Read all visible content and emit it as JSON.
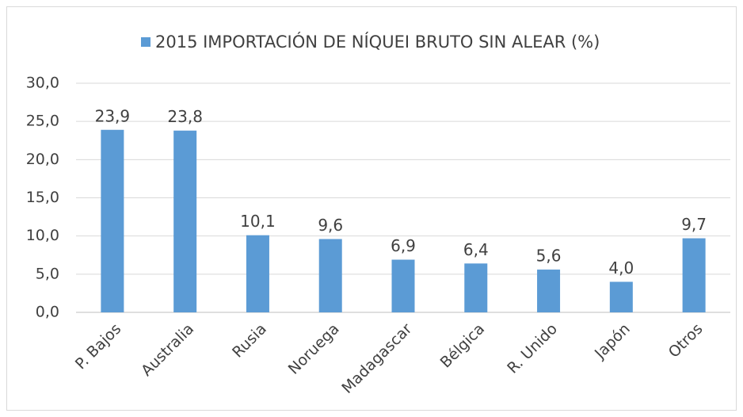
{
  "chart_data": {
    "type": "bar",
    "categories": [
      "P. Bajos",
      "Australia",
      "Rusia",
      "Noruega",
      "Madagascar",
      "Bélgica",
      "R. Unido",
      "Japón",
      "Otros"
    ],
    "series": [
      {
        "name": "2015 IMPORTACIÓN DE NÍQUEI BRUTO SIN ALEAR (%)",
        "color": "#5b9bd5",
        "values": [
          23.9,
          23.8,
          10.1,
          9.6,
          6.9,
          6.4,
          5.6,
          4.0,
          9.7
        ],
        "value_labels": [
          "23,9",
          "23,8",
          "10,1",
          "9,6",
          "6,9",
          "6,4",
          "5,6",
          "4,0",
          "9,7"
        ]
      }
    ],
    "ylim": [
      0,
      30
    ],
    "yticks": [
      {
        "value": 0,
        "label": "0,0"
      },
      {
        "value": 5,
        "label": "5,0"
      },
      {
        "value": 10,
        "label": "10,0"
      },
      {
        "value": 15,
        "label": "15,0"
      },
      {
        "value": 20,
        "label": "20,0"
      },
      {
        "value": 25,
        "label": "25,0"
      },
      {
        "value": 30,
        "label": "30,0"
      }
    ],
    "grid": true,
    "legend": "top"
  }
}
